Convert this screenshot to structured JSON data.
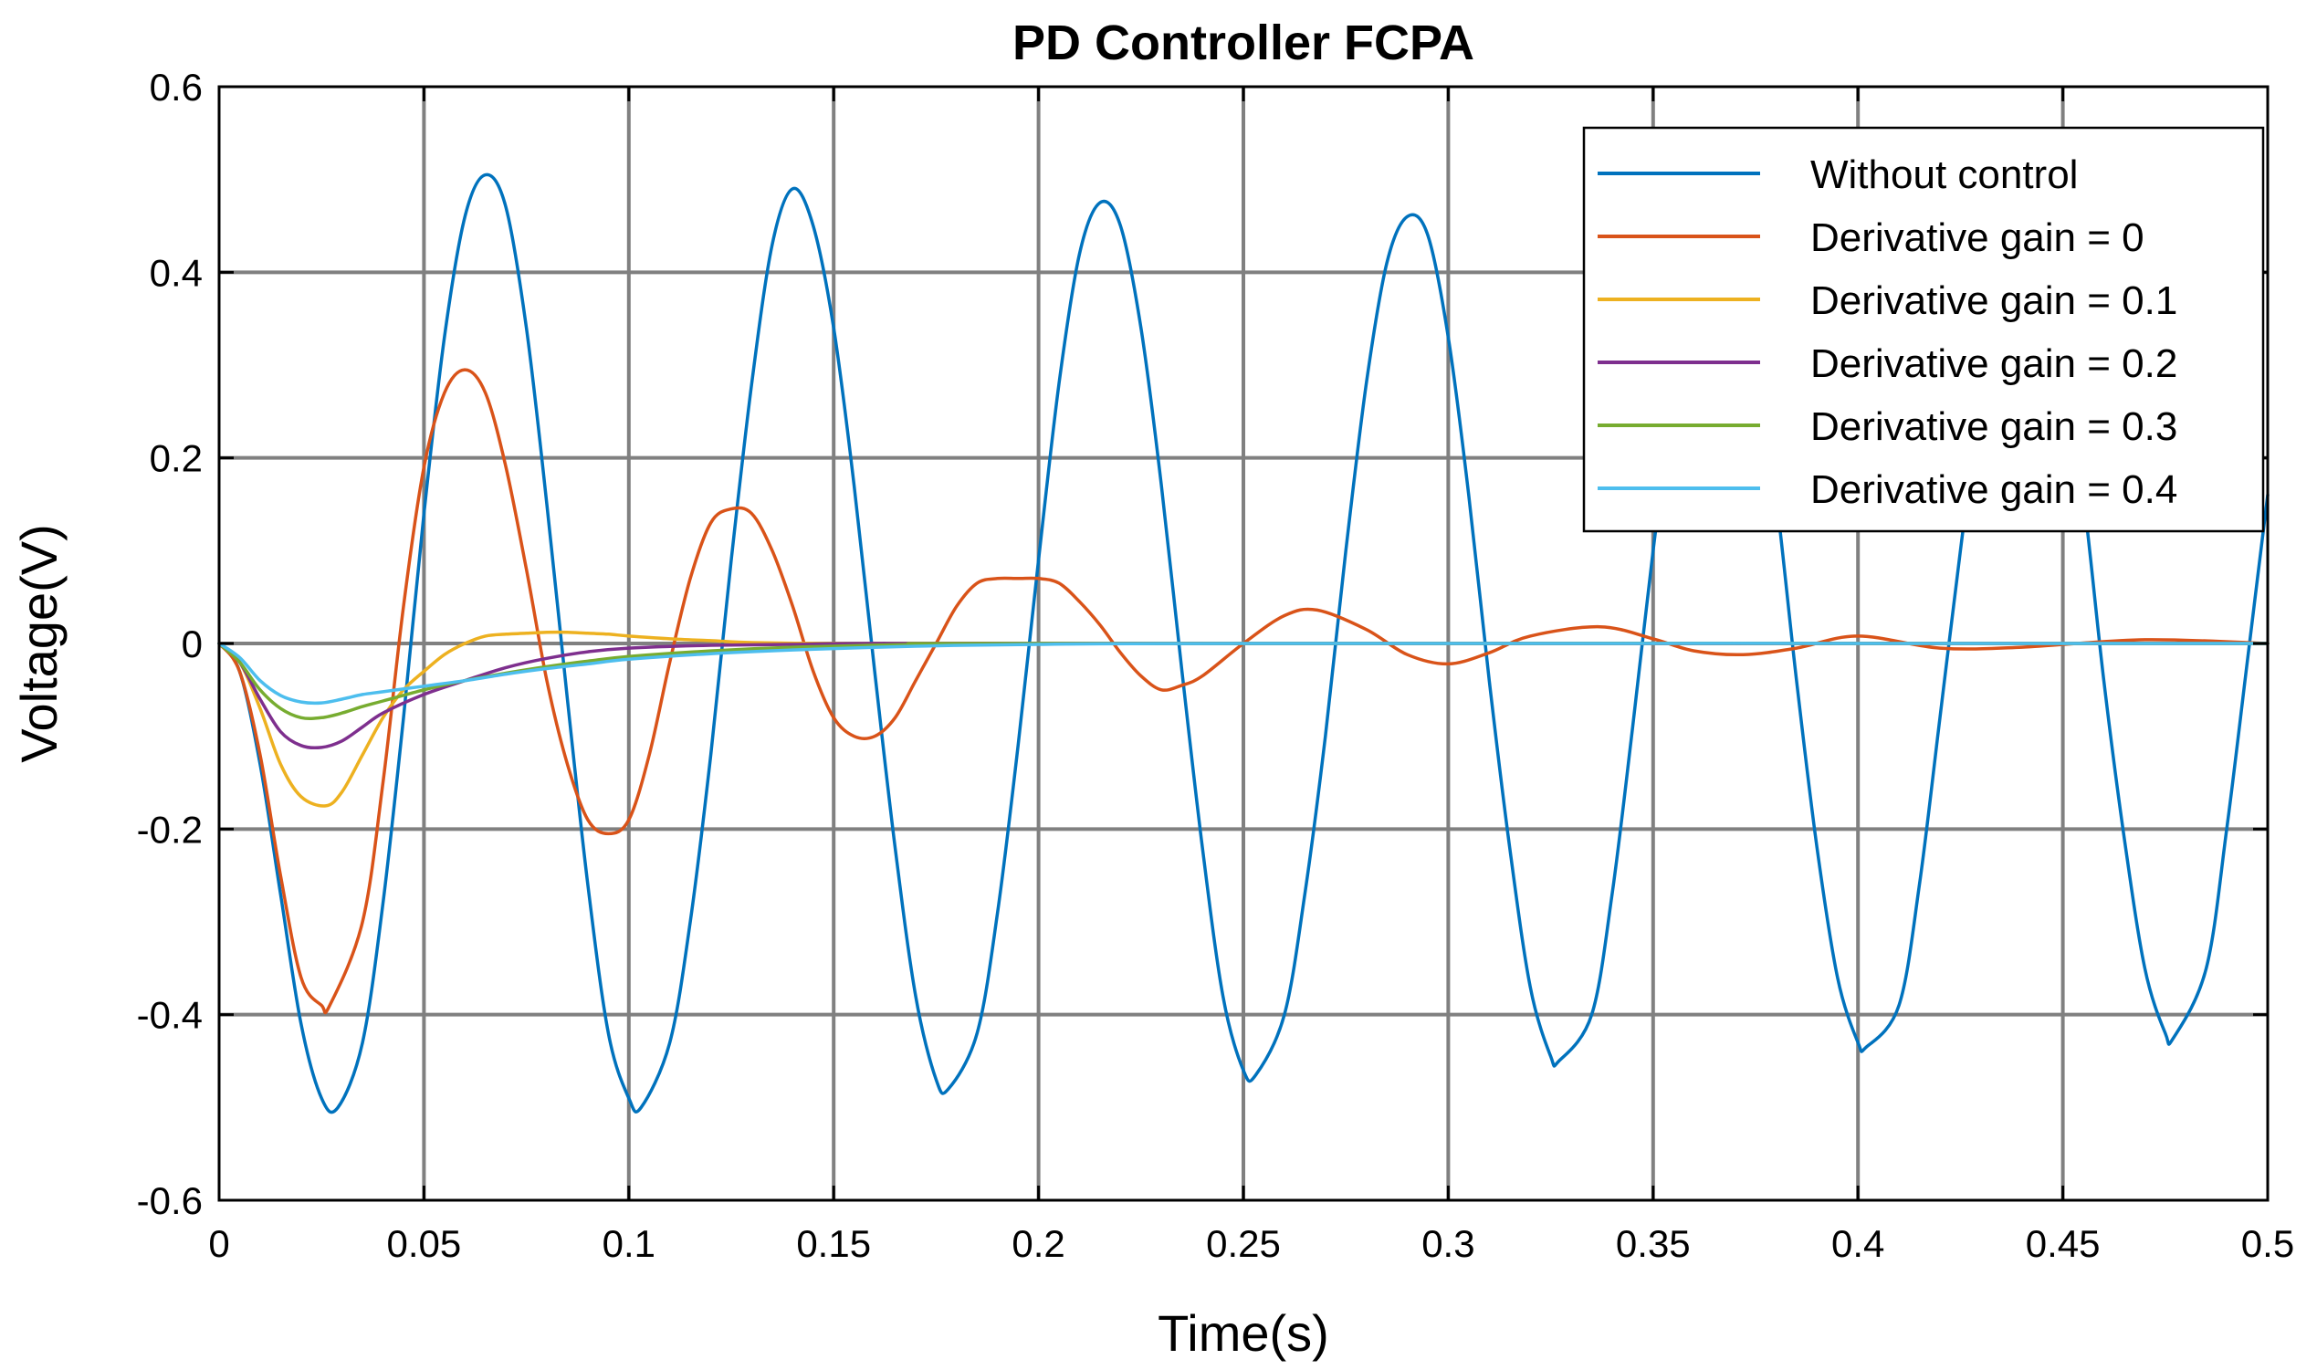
{
  "chart_data": {
    "type": "line",
    "title": "PD Controller FCPA",
    "xlabel": "Time(s)",
    "ylabel": "Voltage(V)",
    "xlim": [
      0,
      0.5
    ],
    "ylim": [
      -0.6,
      0.6
    ],
    "xticks": [
      0,
      0.05,
      0.1,
      0.15,
      0.2,
      0.25,
      0.3,
      0.35,
      0.4,
      0.45,
      0.5
    ],
    "xtick_labels": [
      "0",
      "0.05",
      "0.1",
      "0.15",
      "0.2",
      "0.25",
      "0.3",
      "0.35",
      "0.4",
      "0.45",
      "0.5"
    ],
    "yticks": [
      -0.6,
      -0.4,
      -0.2,
      0,
      0.2,
      0.4,
      0.6
    ],
    "ytick_labels": [
      "-0.6",
      "-0.4",
      "-0.2",
      "0",
      "0.2",
      "0.4",
      "0.6"
    ],
    "grid": true,
    "legend_position": "top-right",
    "series": [
      {
        "name": "Without control",
        "color": "#0072BD",
        "x": [
          0,
          0.005,
          0.01,
          0.015,
          0.02,
          0.025,
          0.029,
          0.035,
          0.04,
          0.045,
          0.05,
          0.055,
          0.06,
          0.065,
          0.07,
          0.075,
          0.08,
          0.085,
          0.09,
          0.095,
          0.1,
          0.103,
          0.11,
          0.115,
          0.12,
          0.125,
          0.13,
          0.135,
          0.14,
          0.145,
          0.15,
          0.155,
          0.16,
          0.165,
          0.17,
          0.175,
          0.178,
          0.185,
          0.19,
          0.195,
          0.2,
          0.205,
          0.21,
          0.215,
          0.22,
          0.225,
          0.23,
          0.235,
          0.24,
          0.245,
          0.25,
          0.253,
          0.26,
          0.265,
          0.27,
          0.275,
          0.28,
          0.285,
          0.29,
          0.295,
          0.3,
          0.305,
          0.31,
          0.315,
          0.32,
          0.325,
          0.327,
          0.335,
          0.34,
          0.345,
          0.35,
          0.355,
          0.36,
          0.365,
          0.37,
          0.375,
          0.38,
          0.385,
          0.39,
          0.395,
          0.4,
          0.402,
          0.41,
          0.415,
          0.42,
          0.425,
          0.43,
          0.435,
          0.44,
          0.445,
          0.45,
          0.455,
          0.46,
          0.465,
          0.47,
          0.475,
          0.477,
          0.485,
          0.49,
          0.495,
          0.5
        ],
        "y": [
          0,
          -0.03,
          -0.13,
          -0.27,
          -0.41,
          -0.49,
          -0.5,
          -0.43,
          -0.28,
          -0.08,
          0.14,
          0.33,
          0.46,
          0.505,
          0.47,
          0.34,
          0.15,
          -0.06,
          -0.26,
          -0.42,
          -0.49,
          -0.5,
          -0.43,
          -0.3,
          -0.12,
          0.09,
          0.28,
          0.43,
          0.49,
          0.45,
          0.34,
          0.17,
          -0.03,
          -0.22,
          -0.38,
          -0.47,
          -0.48,
          -0.42,
          -0.29,
          -0.11,
          0.09,
          0.28,
          0.42,
          0.475,
          0.45,
          0.34,
          0.17,
          -0.03,
          -0.22,
          -0.38,
          -0.46,
          -0.465,
          -0.4,
          -0.27,
          -0.1,
          0.1,
          0.28,
          0.41,
          0.46,
          0.44,
          0.33,
          0.16,
          -0.04,
          -0.22,
          -0.37,
          -0.445,
          -0.45,
          -0.4,
          -0.27,
          -0.09,
          0.1,
          0.27,
          0.4,
          0.445,
          0.42,
          0.32,
          0.16,
          -0.04,
          -0.22,
          -0.36,
          -0.43,
          -0.435,
          -0.39,
          -0.26,
          -0.08,
          0.1,
          0.27,
          0.39,
          0.435,
          0.41,
          0.31,
          0.16,
          -0.04,
          -0.21,
          -0.35,
          -0.42,
          -0.425,
          -0.35,
          -0.2,
          -0.02,
          0.16
        ]
      },
      {
        "name": "Derivative gain = 0",
        "color": "#D95319",
        "x": [
          0,
          0.005,
          0.01,
          0.015,
          0.02,
          0.025,
          0.027,
          0.035,
          0.04,
          0.045,
          0.05,
          0.055,
          0.06,
          0.065,
          0.07,
          0.075,
          0.08,
          0.085,
          0.09,
          0.095,
          0.1,
          0.105,
          0.11,
          0.115,
          0.12,
          0.125,
          0.13,
          0.135,
          0.14,
          0.145,
          0.15,
          0.155,
          0.16,
          0.165,
          0.17,
          0.175,
          0.18,
          0.185,
          0.19,
          0.195,
          0.2,
          0.205,
          0.21,
          0.215,
          0.22,
          0.225,
          0.23,
          0.235,
          0.24,
          0.25,
          0.26,
          0.268,
          0.28,
          0.29,
          0.3,
          0.31,
          0.32,
          0.337,
          0.35,
          0.36,
          0.372,
          0.385,
          0.4,
          0.42,
          0.44,
          0.47,
          0.5
        ],
        "y": [
          0,
          -0.03,
          -0.12,
          -0.25,
          -0.36,
          -0.39,
          -0.39,
          -0.3,
          -0.15,
          0.04,
          0.19,
          0.27,
          0.295,
          0.27,
          0.19,
          0.08,
          -0.04,
          -0.13,
          -0.19,
          -0.205,
          -0.19,
          -0.12,
          -0.02,
          0.07,
          0.13,
          0.145,
          0.14,
          0.1,
          0.04,
          -0.03,
          -0.08,
          -0.1,
          -0.1,
          -0.08,
          -0.04,
          0.0,
          0.04,
          0.065,
          0.07,
          0.07,
          0.07,
          0.065,
          0.045,
          0.02,
          -0.01,
          -0.035,
          -0.05,
          -0.045,
          -0.035,
          0.0,
          0.03,
          0.036,
          0.015,
          -0.012,
          -0.022,
          -0.01,
          0.008,
          0.018,
          0.005,
          -0.008,
          -0.012,
          -0.005,
          0.008,
          -0.005,
          -0.004,
          0.004,
          0.0
        ]
      },
      {
        "name": "Derivative gain = 0.1",
        "color": "#EDB120",
        "x": [
          0,
          0.005,
          0.01,
          0.015,
          0.02,
          0.026,
          0.03,
          0.035,
          0.04,
          0.045,
          0.05,
          0.055,
          0.06,
          0.065,
          0.07,
          0.075,
          0.08,
          0.085,
          0.09,
          0.095,
          0.1,
          0.11,
          0.12,
          0.13,
          0.15,
          0.2,
          0.5
        ],
        "y": [
          0,
          -0.02,
          -0.07,
          -0.13,
          -0.165,
          -0.175,
          -0.16,
          -0.12,
          -0.08,
          -0.05,
          -0.03,
          -0.012,
          0.0,
          0.008,
          0.01,
          0.011,
          0.012,
          0.012,
          0.011,
          0.01,
          0.008,
          0.005,
          0.003,
          0.001,
          0.0,
          0.0,
          0.0
        ]
      },
      {
        "name": "Derivative gain = 0.2",
        "color": "#7E2F8E",
        "x": [
          0,
          0.005,
          0.01,
          0.015,
          0.02,
          0.025,
          0.03,
          0.035,
          0.04,
          0.05,
          0.06,
          0.07,
          0.08,
          0.09,
          0.1,
          0.12,
          0.14,
          0.16,
          0.2,
          0.5
        ],
        "y": [
          0,
          -0.02,
          -0.06,
          -0.095,
          -0.11,
          -0.112,
          -0.105,
          -0.09,
          -0.075,
          -0.055,
          -0.04,
          -0.026,
          -0.016,
          -0.009,
          -0.005,
          -0.002,
          -0.001,
          0.0,
          0.0,
          0.0
        ]
      },
      {
        "name": "Derivative gain = 0.3",
        "color": "#77AC30",
        "x": [
          0,
          0.005,
          0.01,
          0.015,
          0.02,
          0.025,
          0.03,
          0.035,
          0.04,
          0.05,
          0.06,
          0.07,
          0.08,
          0.09,
          0.1,
          0.12,
          0.14,
          0.17,
          0.2,
          0.5
        ],
        "y": [
          0,
          -0.02,
          -0.05,
          -0.07,
          -0.08,
          -0.08,
          -0.075,
          -0.068,
          -0.062,
          -0.05,
          -0.04,
          -0.032,
          -0.025,
          -0.019,
          -0.014,
          -0.008,
          -0.004,
          -0.001,
          0.0,
          0.0
        ]
      },
      {
        "name": "Derivative gain = 0.4",
        "color": "#4DBEEE",
        "x": [
          0,
          0.005,
          0.01,
          0.015,
          0.02,
          0.025,
          0.03,
          0.035,
          0.04,
          0.05,
          0.06,
          0.07,
          0.08,
          0.09,
          0.1,
          0.12,
          0.14,
          0.17,
          0.2,
          0.25,
          0.5
        ],
        "y": [
          0,
          -0.015,
          -0.04,
          -0.056,
          -0.063,
          -0.064,
          -0.06,
          -0.055,
          -0.052,
          -0.046,
          -0.04,
          -0.033,
          -0.027,
          -0.022,
          -0.017,
          -0.011,
          -0.007,
          -0.003,
          -0.001,
          0.0,
          0.0
        ]
      }
    ]
  }
}
